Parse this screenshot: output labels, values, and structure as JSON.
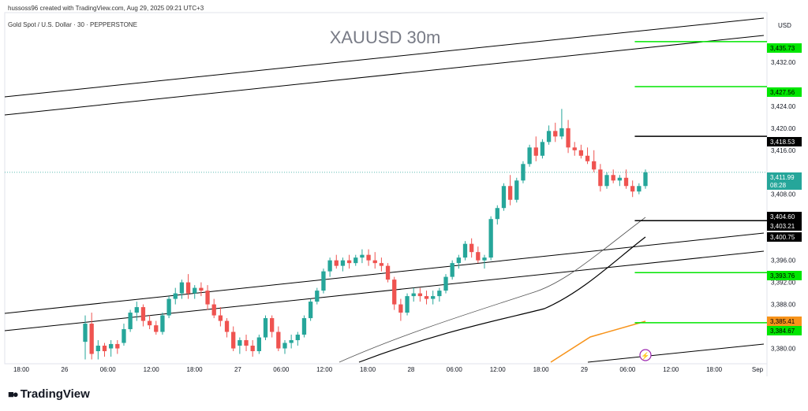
{
  "header": {
    "attribution": "hussoss96 created with TradingView.com, Aug 29, 2025 09:21 UTC+3",
    "symbol_line": "Gold Spot / U.S. Dollar · 30 · PEPPERSTONE",
    "watermark": "XAUUSD 30m",
    "currency": "USD"
  },
  "footer": {
    "brand": "TradingView"
  },
  "colors": {
    "up": "#26a69a",
    "down": "#ef5350",
    "green_level": "#00e600",
    "orange": "#f7931a",
    "black": "#000000",
    "purple": "#9c27b0",
    "grid": "#f0f3fa"
  },
  "icons": {
    "brand_logo": "tradingview-logo-icon",
    "alert": "lightning-alert-icon"
  },
  "chart_data": {
    "type": "candlestick",
    "title": "XAUUSD 30m",
    "ylim": [
      3377.5,
      3441
    ],
    "y_ticks": [
      3380,
      3384,
      3388,
      3392,
      3396,
      3400,
      3404,
      3408,
      3412,
      3416,
      3420,
      3424,
      3428,
      3432,
      3436
    ],
    "y_tick_labels": [
      "3,380.00",
      "",
      "3,388.00",
      "3,392.00",
      "3,396.00",
      "",
      "",
      "3,408.00",
      "",
      "3,416.00",
      "3,420.00",
      "3,424.00",
      "",
      "3,432.00",
      ""
    ],
    "x_labels": [
      "18:00",
      "26",
      "06:00",
      "12:00",
      "18:00",
      "27",
      "06:00",
      "12:00",
      "18:00",
      "28",
      "06:00",
      "12:00",
      "18:00",
      "29",
      "06:00",
      "12:00",
      "18:00",
      "Sep"
    ],
    "price_labels": [
      {
        "value": "3,435.73",
        "type": "green"
      },
      {
        "value": "3,427.56",
        "type": "green"
      },
      {
        "value": "3,418.53",
        "type": "black"
      },
      {
        "value": "3,411.99",
        "sub": "08:28",
        "type": "current"
      },
      {
        "value": "3,404.60",
        "type": "black"
      },
      {
        "value": "3,403.21",
        "type": "black"
      },
      {
        "value": "3,400.75",
        "type": "black"
      },
      {
        "value": "3,393.76",
        "type": "green"
      },
      {
        "value": "3,385.41",
        "type": "orange"
      },
      {
        "value": "3,384.67",
        "type": "green"
      }
    ],
    "levels": [
      {
        "price": 3435.73,
        "type": "green",
        "x_start": 0.83
      },
      {
        "price": 3427.56,
        "type": "green",
        "x_start": 0.83
      },
      {
        "price": 3418.53,
        "type": "black",
        "x_start": 0.83
      },
      {
        "price": 3403.21,
        "type": "black",
        "x_start": 0.83
      },
      {
        "price": 3393.76,
        "type": "green",
        "x_start": 0.83
      },
      {
        "price": 3384.67,
        "type": "green",
        "x_start": 0.83
      }
    ],
    "current_price": 3411.99,
    "candles": [
      {
        "o": 3381.2,
        "h": 3386.0,
        "l": 3378.0,
        "c": 3384.5
      },
      {
        "o": 3384.5,
        "h": 3386.5,
        "l": 3378.0,
        "c": 3379.0
      },
      {
        "o": 3379.5,
        "h": 3381.5,
        "l": 3378.0,
        "c": 3380.5
      },
      {
        "o": 3380.5,
        "h": 3381.0,
        "l": 3378.5,
        "c": 3379.5
      },
      {
        "o": 3380.0,
        "h": 3381.5,
        "l": 3378.5,
        "c": 3380.8
      },
      {
        "o": 3380.8,
        "h": 3381.5,
        "l": 3379.0,
        "c": 3380.0
      },
      {
        "o": 3381.0,
        "h": 3384.5,
        "l": 3380.5,
        "c": 3383.5
      },
      {
        "o": 3383.5,
        "h": 3387.0,
        "l": 3383.0,
        "c": 3386.5
      },
      {
        "o": 3386.5,
        "h": 3388.5,
        "l": 3385.0,
        "c": 3387.5
      },
      {
        "o": 3387.5,
        "h": 3388.0,
        "l": 3384.0,
        "c": 3385.0
      },
      {
        "o": 3385.0,
        "h": 3386.0,
        "l": 3383.5,
        "c": 3384.2
      },
      {
        "o": 3384.2,
        "h": 3385.0,
        "l": 3382.5,
        "c": 3383.0
      },
      {
        "o": 3383.0,
        "h": 3386.5,
        "l": 3382.5,
        "c": 3386.0
      },
      {
        "o": 3386.0,
        "h": 3389.5,
        "l": 3385.5,
        "c": 3389.0
      },
      {
        "o": 3389.0,
        "h": 3391.0,
        "l": 3388.0,
        "c": 3390.0
      },
      {
        "o": 3390.0,
        "h": 3392.5,
        "l": 3389.0,
        "c": 3392.0
      },
      {
        "o": 3392.0,
        "h": 3393.5,
        "l": 3389.0,
        "c": 3390.0
      },
      {
        "o": 3390.0,
        "h": 3391.5,
        "l": 3389.0,
        "c": 3391.0
      },
      {
        "o": 3391.0,
        "h": 3392.0,
        "l": 3389.5,
        "c": 3390.5
      },
      {
        "o": 3390.5,
        "h": 3391.5,
        "l": 3387.0,
        "c": 3388.0
      },
      {
        "o": 3388.0,
        "h": 3389.0,
        "l": 3385.5,
        "c": 3386.0
      },
      {
        "o": 3386.0,
        "h": 3387.5,
        "l": 3384.0,
        "c": 3385.0
      },
      {
        "o": 3385.0,
        "h": 3385.5,
        "l": 3382.0,
        "c": 3383.0
      },
      {
        "o": 3383.0,
        "h": 3384.0,
        "l": 3379.5,
        "c": 3380.0
      },
      {
        "o": 3380.5,
        "h": 3382.0,
        "l": 3379.0,
        "c": 3381.5
      },
      {
        "o": 3381.5,
        "h": 3382.5,
        "l": 3379.5,
        "c": 3380.5
      },
      {
        "o": 3380.5,
        "h": 3381.5,
        "l": 3378.5,
        "c": 3379.5
      },
      {
        "o": 3379.5,
        "h": 3382.5,
        "l": 3379.0,
        "c": 3382.0
      },
      {
        "o": 3382.0,
        "h": 3386.0,
        "l": 3381.5,
        "c": 3385.5
      },
      {
        "o": 3385.5,
        "h": 3386.0,
        "l": 3382.0,
        "c": 3383.0
      },
      {
        "o": 3383.0,
        "h": 3384.0,
        "l": 3379.5,
        "c": 3380.0
      },
      {
        "o": 3380.0,
        "h": 3381.5,
        "l": 3379.0,
        "c": 3381.0
      },
      {
        "o": 3381.0,
        "h": 3382.5,
        "l": 3380.0,
        "c": 3381.5
      },
      {
        "o": 3381.5,
        "h": 3383.0,
        "l": 3380.5,
        "c": 3382.5
      },
      {
        "o": 3382.5,
        "h": 3386.0,
        "l": 3382.0,
        "c": 3385.5
      },
      {
        "o": 3385.5,
        "h": 3389.0,
        "l": 3385.0,
        "c": 3388.5
      },
      {
        "o": 3388.5,
        "h": 3391.0,
        "l": 3388.0,
        "c": 3390.5
      },
      {
        "o": 3390.5,
        "h": 3394.5,
        "l": 3390.0,
        "c": 3394.0
      },
      {
        "o": 3394.0,
        "h": 3396.5,
        "l": 3393.0,
        "c": 3396.0
      },
      {
        "o": 3396.0,
        "h": 3397.0,
        "l": 3394.5,
        "c": 3395.0
      },
      {
        "o": 3395.0,
        "h": 3396.5,
        "l": 3394.0,
        "c": 3396.0
      },
      {
        "o": 3396.0,
        "h": 3397.0,
        "l": 3394.5,
        "c": 3395.5
      },
      {
        "o": 3395.5,
        "h": 3397.0,
        "l": 3395.0,
        "c": 3396.5
      },
      {
        "o": 3396.5,
        "h": 3398.0,
        "l": 3395.5,
        "c": 3397.0
      },
      {
        "o": 3397.0,
        "h": 3398.0,
        "l": 3395.0,
        "c": 3396.0
      },
      {
        "o": 3396.0,
        "h": 3397.5,
        "l": 3394.5,
        "c": 3395.5
      },
      {
        "o": 3395.5,
        "h": 3396.5,
        "l": 3394.0,
        "c": 3395.0
      },
      {
        "o": 3395.0,
        "h": 3395.5,
        "l": 3392.0,
        "c": 3392.5
      },
      {
        "o": 3392.5,
        "h": 3393.0,
        "l": 3387.0,
        "c": 3388.0
      },
      {
        "o": 3388.0,
        "h": 3389.0,
        "l": 3385.0,
        "c": 3386.5
      },
      {
        "o": 3386.5,
        "h": 3390.0,
        "l": 3386.0,
        "c": 3389.5
      },
      {
        "o": 3389.5,
        "h": 3391.0,
        "l": 3388.5,
        "c": 3390.0
      },
      {
        "o": 3390.0,
        "h": 3391.0,
        "l": 3388.5,
        "c": 3389.5
      },
      {
        "o": 3389.5,
        "h": 3390.5,
        "l": 3388.0,
        "c": 3389.0
      },
      {
        "o": 3389.0,
        "h": 3390.5,
        "l": 3388.0,
        "c": 3389.5
      },
      {
        "o": 3389.5,
        "h": 3391.0,
        "l": 3388.5,
        "c": 3390.5
      },
      {
        "o": 3390.5,
        "h": 3393.5,
        "l": 3390.0,
        "c": 3393.0
      },
      {
        "o": 3393.0,
        "h": 3396.0,
        "l": 3392.5,
        "c": 3395.5
      },
      {
        "o": 3395.5,
        "h": 3397.0,
        "l": 3394.5,
        "c": 3396.5
      },
      {
        "o": 3396.5,
        "h": 3399.5,
        "l": 3396.0,
        "c": 3399.0
      },
      {
        "o": 3399.0,
        "h": 3400.0,
        "l": 3396.5,
        "c": 3397.5
      },
      {
        "o": 3397.5,
        "h": 3398.5,
        "l": 3395.5,
        "c": 3396.0
      },
      {
        "o": 3396.0,
        "h": 3397.0,
        "l": 3394.5,
        "c": 3396.5
      },
      {
        "o": 3396.5,
        "h": 3404.0,
        "l": 3396.0,
        "c": 3403.5
      },
      {
        "o": 3403.5,
        "h": 3406.0,
        "l": 3402.5,
        "c": 3405.5
      },
      {
        "o": 3405.5,
        "h": 3410.0,
        "l": 3405.0,
        "c": 3409.5
      },
      {
        "o": 3409.5,
        "h": 3411.5,
        "l": 3406.0,
        "c": 3407.0
      },
      {
        "o": 3407.0,
        "h": 3411.0,
        "l": 3406.5,
        "c": 3410.5
      },
      {
        "o": 3410.5,
        "h": 3414.0,
        "l": 3410.0,
        "c": 3413.5
      },
      {
        "o": 3413.5,
        "h": 3417.0,
        "l": 3413.0,
        "c": 3416.5
      },
      {
        "o": 3416.5,
        "h": 3418.5,
        "l": 3414.0,
        "c": 3415.0
      },
      {
        "o": 3415.0,
        "h": 3418.0,
        "l": 3414.5,
        "c": 3417.5
      },
      {
        "o": 3417.5,
        "h": 3420.5,
        "l": 3417.0,
        "c": 3419.5
      },
      {
        "o": 3419.5,
        "h": 3421.0,
        "l": 3417.5,
        "c": 3418.5
      },
      {
        "o": 3418.5,
        "h": 3423.5,
        "l": 3418.0,
        "c": 3420.0
      },
      {
        "o": 3420.0,
        "h": 3421.5,
        "l": 3415.5,
        "c": 3416.5
      },
      {
        "o": 3416.5,
        "h": 3417.5,
        "l": 3415.0,
        "c": 3416.0
      },
      {
        "o": 3416.0,
        "h": 3417.0,
        "l": 3414.5,
        "c": 3415.0
      },
      {
        "o": 3415.0,
        "h": 3416.5,
        "l": 3413.5,
        "c": 3414.0
      },
      {
        "o": 3414.0,
        "h": 3416.0,
        "l": 3412.0,
        "c": 3412.5
      },
      {
        "o": 3412.5,
        "h": 3413.5,
        "l": 3408.5,
        "c": 3409.5
      },
      {
        "o": 3409.5,
        "h": 3412.0,
        "l": 3409.0,
        "c": 3411.5
      },
      {
        "o": 3411.5,
        "h": 3412.5,
        "l": 3410.0,
        "c": 3410.5
      },
      {
        "o": 3410.5,
        "h": 3411.5,
        "l": 3409.5,
        "c": 3411.0
      },
      {
        "o": 3411.0,
        "h": 3412.5,
        "l": 3409.0,
        "c": 3409.5
      },
      {
        "o": 3409.5,
        "h": 3410.5,
        "l": 3407.5,
        "c": 3408.5
      },
      {
        "o": 3408.5,
        "h": 3410.0,
        "l": 3408.0,
        "c": 3409.5
      },
      {
        "o": 3409.5,
        "h": 3412.5,
        "l": 3409.0,
        "c": 3411.99
      }
    ]
  }
}
